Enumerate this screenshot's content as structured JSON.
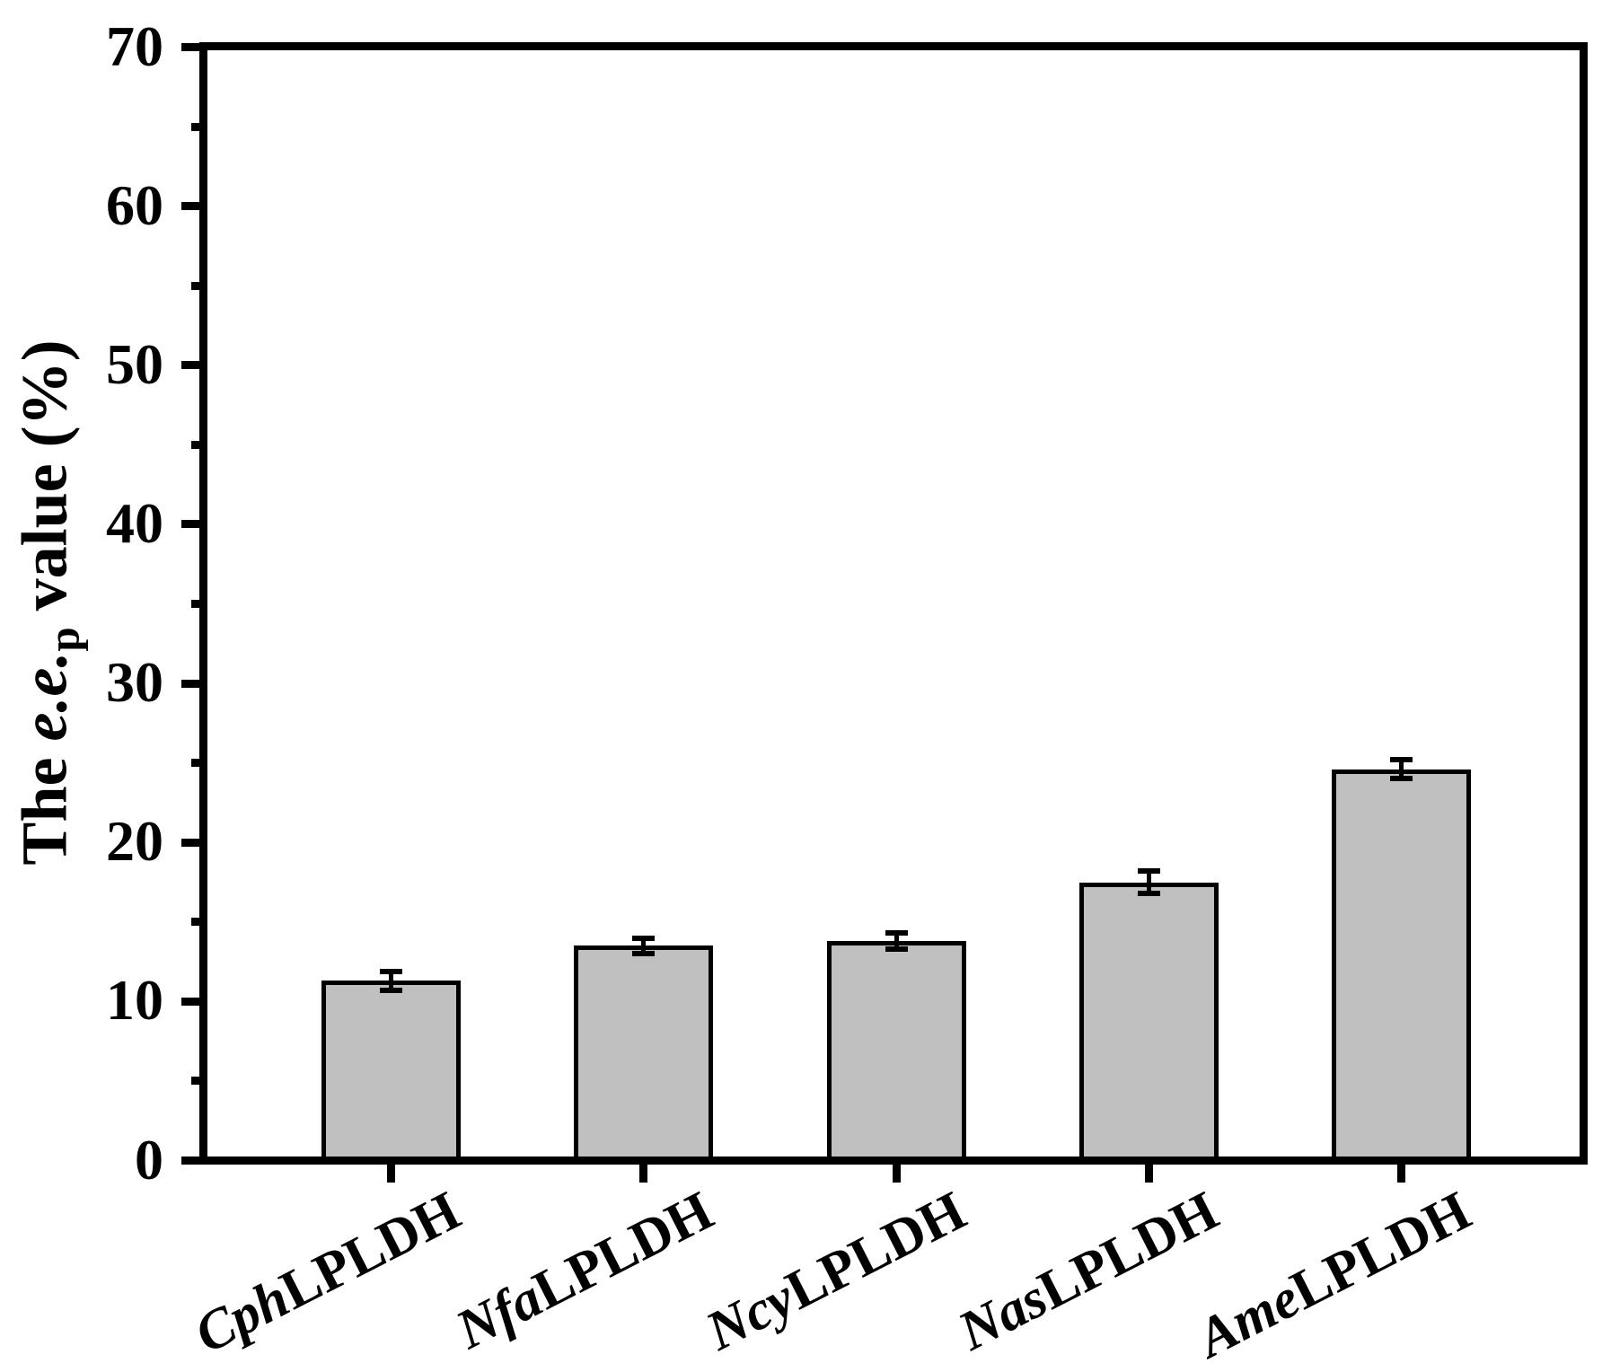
{
  "chart_data": {
    "type": "bar",
    "title": "",
    "ylabel": {
      "pre": "The ",
      "italic": "e.e.",
      "sub": "p",
      "post": " value (%)"
    },
    "xlabel": "",
    "categories": [
      {
        "italic": "Cph",
        "rest": "LPLDH"
      },
      {
        "italic": "Nfa",
        "rest": "LPLDH"
      },
      {
        "italic": "Ncy",
        "rest": "LPLDH"
      },
      {
        "italic": "Nas",
        "rest": "LPLDH"
      },
      {
        "italic": "Ame",
        "rest": "LPLDH"
      }
    ],
    "values": [
      11.3,
      13.5,
      13.8,
      17.5,
      24.6
    ],
    "errors": [
      0.6,
      0.5,
      0.5,
      0.7,
      0.6
    ],
    "ylim": [
      0,
      70
    ],
    "yticks_major": [
      0,
      10,
      20,
      30,
      40,
      50,
      60,
      70
    ],
    "yticks_minor": [
      5,
      15,
      25,
      35,
      45,
      55,
      65
    ],
    "grid": false,
    "legend": null,
    "bar_fill": "#c0c0c0",
    "bar_edge": "#000000",
    "axis_color": "#000000",
    "background": "#ffffff",
    "error_bar_style": "caps-above-and-below"
  }
}
